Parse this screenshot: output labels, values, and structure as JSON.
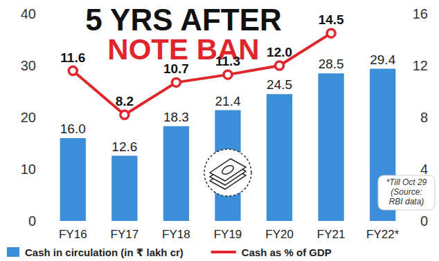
{
  "chart_data": {
    "type": "bar",
    "title": "5 YRS AFTER",
    "subtitle": "NOTE BAN",
    "categories": [
      "FY16",
      "FY17",
      "FY18",
      "FY19",
      "FY20",
      "FY21",
      "FY22*"
    ],
    "series": [
      {
        "name": "Cash in circulation (in ₹ lakh cr)",
        "type": "bar",
        "color": "#3b8fd9",
        "values": [
          16.0,
          12.6,
          18.3,
          21.4,
          24.5,
          28.5,
          29.4
        ],
        "value_labels": [
          "16.0",
          "12.6",
          "18.3",
          "21.4",
          "24.5",
          "28.5",
          "29.4"
        ]
      },
      {
        "name": "Cash as % of GDP",
        "type": "line",
        "axis": "y2",
        "color": "#e0262c",
        "marker": "circle",
        "values": [
          11.6,
          8.2,
          10.7,
          11.3,
          12.0,
          14.5,
          null
        ],
        "value_labels": [
          "11.6",
          "8.2",
          "10.7",
          "11.3",
          "12.0",
          "14.5",
          null
        ]
      }
    ],
    "ylim": [
      0,
      40
    ],
    "yticks": [
      0,
      10,
      20,
      30,
      40
    ],
    "y2lim": [
      0,
      16
    ],
    "y2ticks": [
      0,
      4,
      8,
      12,
      16
    ],
    "data_labels": true,
    "grid": false,
    "legend": "bottom",
    "annotations": [
      "*Till Oct 29",
      "(Source:",
      "RBI data)"
    ]
  }
}
